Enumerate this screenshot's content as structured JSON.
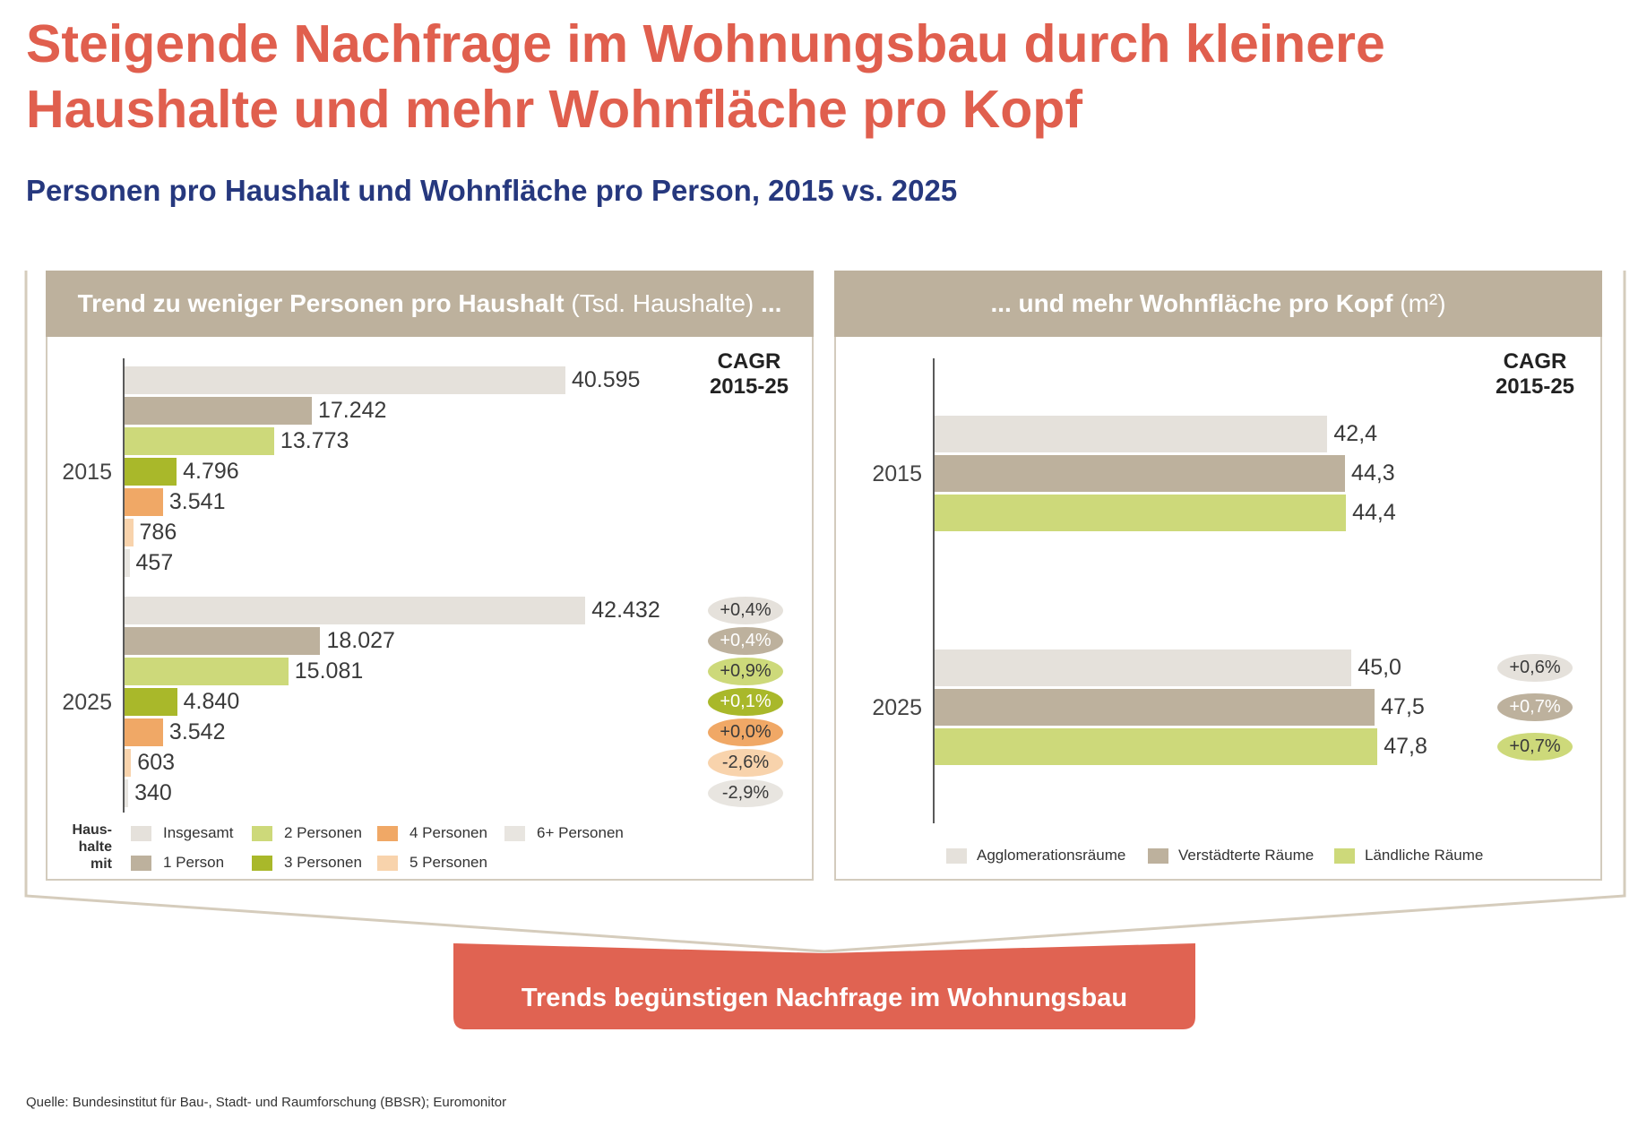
{
  "title_lines": [
    "Steigende Nachfrage im Wohnungsbau durch kleinere",
    "Haushalte und mehr Wohnfläche pro Kopf"
  ],
  "subtitle": "Personen pro Haushalt und Wohnfläche pro Person, 2015 vs. 2025",
  "colors": {
    "title": "#e05f4e",
    "subtitle": "#26387e",
    "panel_header": "#bdb19d",
    "panel_border": "#d3cbbd",
    "bracket": "#d5ccbc",
    "conclusion_box": "#e06352"
  },
  "chart_data": [
    {
      "type": "bar",
      "orientation": "horizontal",
      "title": "Trend zu weniger Personen pro Haushalt",
      "unit": "(Tsd. Haushalte)",
      "title_suffix": "...",
      "categories": [
        "2015",
        "2025"
      ],
      "xlim": [
        0,
        50000
      ],
      "grid": false,
      "legend_position": "bottom",
      "legend_title": [
        "Haus-",
        "halte",
        "mit"
      ],
      "cagr_header": [
        "CAGR",
        "2015-25"
      ],
      "series": [
        {
          "name": "Insgesamt",
          "color": "#e5e1db",
          "values": [
            40595,
            42432
          ],
          "labels": [
            "40.595",
            "42.432"
          ],
          "cagr": "+0,4%",
          "cagr_text": "#3a3a3a"
        },
        {
          "name": "1 Person",
          "color": "#bdb19d",
          "values": [
            17242,
            18027
          ],
          "labels": [
            "17.242",
            "18.027"
          ],
          "cagr": "+0,4%",
          "cagr_text": "#ffffff"
        },
        {
          "name": "2 Personen",
          "color": "#cdd97a",
          "values": [
            13773,
            15081
          ],
          "labels": [
            "13.773",
            "15.081"
          ],
          "cagr": "+0,9%",
          "cagr_text": "#3a3a3a"
        },
        {
          "name": "3 Personen",
          "color": "#a9b82a",
          "values": [
            4796,
            4840
          ],
          "labels": [
            "4.796",
            "4.840"
          ],
          "cagr": "+0,1%",
          "cagr_text": "#ffffff"
        },
        {
          "name": "4 Personen",
          "color": "#f0a866",
          "values": [
            3541,
            3542
          ],
          "labels": [
            "3.541",
            "3.542"
          ],
          "cagr": "+0,0%",
          "cagr_text": "#3a3a3a"
        },
        {
          "name": "5 Personen",
          "color": "#f8d3ac",
          "values": [
            786,
            603
          ],
          "labels": [
            "786",
            "603"
          ],
          "cagr": "-2,6%",
          "cagr_text": "#3a3a3a"
        },
        {
          "name": "6+ Personen",
          "color": "#e8e5e0",
          "values": [
            457,
            340
          ],
          "labels": [
            "457",
            "340"
          ],
          "cagr": "-2,9%",
          "cagr_text": "#3a3a3a"
        }
      ]
    },
    {
      "type": "bar",
      "orientation": "horizontal",
      "title": "... und mehr Wohnfläche pro Kopf",
      "unit": "(m²)",
      "categories": [
        "2015",
        "2025"
      ],
      "xlim": [
        0,
        50
      ],
      "grid": false,
      "legend_position": "bottom",
      "cagr_header": [
        "CAGR",
        "2015-25"
      ],
      "series": [
        {
          "name": "Agglomerationsräume",
          "color": "#e5e1db",
          "values": [
            42.4,
            45.0
          ],
          "labels": [
            "42,4",
            "45,0"
          ],
          "cagr": "+0,6%",
          "cagr_text": "#3a3a3a"
        },
        {
          "name": "Verstädterte Räume",
          "color": "#bdb19d",
          "values": [
            44.3,
            47.5
          ],
          "labels": [
            "44,3",
            "47,5"
          ],
          "cagr": "+0,7%",
          "cagr_text": "#ffffff"
        },
        {
          "name": "Ländliche Räume",
          "color": "#cdd97a",
          "values": [
            44.4,
            47.8
          ],
          "labels": [
            "44,4",
            "47,8"
          ],
          "cagr": "+0,7%",
          "cagr_text": "#3a3a3a"
        }
      ]
    }
  ],
  "conclusion": "Trends begünstigen Nachfrage im Wohnungsbau",
  "source": "Quelle: Bundesinstitut für Bau-, Stadt- und Raumforschung (BBSR); Euromonitor"
}
